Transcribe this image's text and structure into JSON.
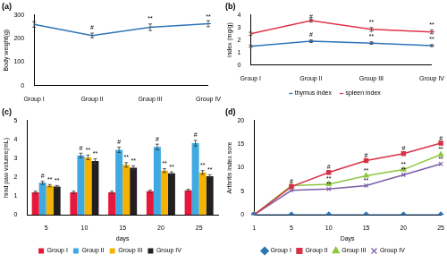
{
  "chart_data": [
    {
      "type": "line",
      "title": "(a)",
      "ylabel": "Body weight(g)",
      "categories": [
        "Group I",
        "Group II",
        "Group III",
        "Group IV"
      ],
      "values": [
        260,
        213,
        248,
        263
      ],
      "errors": [
        12,
        10,
        14,
        13
      ],
      "color": "#2e75b6",
      "marker": "dash",
      "ylim": [
        0,
        300
      ],
      "yticks": [
        0,
        100,
        200,
        300
      ],
      "grid": false,
      "annotations": [
        {
          "text": "#",
          "category": "Group II"
        },
        {
          "text": "**",
          "category": "Group III"
        },
        {
          "text": "**",
          "category": "Group IV"
        }
      ]
    },
    {
      "type": "line",
      "title": "(b)",
      "ylabel": "index (mg/g)",
      "categories": [
        "Group I",
        "Group II",
        "Group III",
        "Group IV"
      ],
      "series": [
        {
          "name": "thymus index",
          "color": "#2e75b6",
          "marker": "dash",
          "values": [
            1.5,
            1.9,
            1.75,
            1.55
          ],
          "errors": [
            0.08,
            0.1,
            0.1,
            0.08
          ]
        },
        {
          "name": "spleen index",
          "color": "#e0344a",
          "marker": "dash",
          "values": [
            2.5,
            3.55,
            2.85,
            2.65
          ],
          "errors": [
            0.12,
            0.12,
            0.15,
            0.15
          ]
        }
      ],
      "ylim": [
        0,
        4
      ],
      "yticks": [
        0,
        1,
        2,
        3,
        4
      ],
      "grid": false,
      "legend": "bottom",
      "annotations": [
        {
          "text": "#",
          "category": "Group II",
          "series": "thymus index"
        },
        {
          "text": "**",
          "category": "Group III",
          "series": "thymus index"
        },
        {
          "text": "**",
          "category": "Group IV",
          "series": "thymus index"
        },
        {
          "text": "#",
          "category": "Group II",
          "series": "spleen index"
        },
        {
          "text": "**",
          "category": "Group III",
          "series": "spleen index"
        },
        {
          "text": "**",
          "category": "Group IV",
          "series": "spleen index"
        }
      ]
    },
    {
      "type": "bar",
      "title": "(c)",
      "xlabel": "days",
      "ylabel": "hind paw volume(mL)",
      "categories": [
        "5",
        "10",
        "15",
        "20",
        "25"
      ],
      "series": [
        {
          "name": "Group I",
          "color": "#e8173c",
          "values": [
            1.2,
            1.2,
            1.2,
            1.25,
            1.3
          ],
          "errors": [
            0.06,
            0.06,
            0.06,
            0.06,
            0.06
          ]
        },
        {
          "name": "Group II",
          "color": "#3fa9e1",
          "values": [
            1.7,
            3.15,
            3.45,
            3.6,
            3.8
          ],
          "errors": [
            0.08,
            0.12,
            0.14,
            0.15,
            0.15
          ]
        },
        {
          "name": "Group III",
          "color": "#f5b301",
          "values": [
            1.55,
            3.05,
            2.65,
            2.35,
            2.25
          ],
          "errors": [
            0.06,
            0.12,
            0.12,
            0.1,
            0.1
          ]
        },
        {
          "name": "Group IV",
          "color": "#231f20",
          "values": [
            1.5,
            2.85,
            2.5,
            2.2,
            2.05
          ],
          "errors": [
            0.06,
            0.12,
            0.1,
            0.08,
            0.08
          ]
        }
      ],
      "ylim": [
        0,
        5
      ],
      "yticks": [
        0,
        1,
        2,
        3,
        4,
        5
      ],
      "grid": false,
      "legend": "bottom",
      "annotations": [
        {
          "text": "#",
          "category": "5",
          "series": "Group II"
        },
        {
          "text": "**",
          "category": "5",
          "series": "Group III"
        },
        {
          "text": "**",
          "category": "5",
          "series": "Group IV"
        },
        {
          "text": "#",
          "category": "10",
          "series": "Group II"
        },
        {
          "text": "**",
          "category": "10",
          "series": "Group III"
        },
        {
          "text": "**",
          "category": "10",
          "series": "Group IV"
        },
        {
          "text": "#",
          "category": "15",
          "series": "Group II"
        },
        {
          "text": "**",
          "category": "15",
          "series": "Group III"
        },
        {
          "text": "**",
          "category": "15",
          "series": "Group IV"
        },
        {
          "text": "#",
          "category": "20",
          "series": "Group II"
        },
        {
          "text": "**",
          "category": "20",
          "series": "Group III"
        },
        {
          "text": "**",
          "category": "20",
          "series": "Group IV"
        },
        {
          "text": "#",
          "category": "25",
          "series": "Group II"
        },
        {
          "text": "**",
          "category": "25",
          "series": "Group III"
        },
        {
          "text": "**",
          "category": "25",
          "series": "Group IV"
        }
      ]
    },
    {
      "type": "line",
      "title": "(d)",
      "xlabel": "Days",
      "ylabel": "Arthritis index sore",
      "categories": [
        "1",
        "5",
        "10",
        "15",
        "20",
        "25"
      ],
      "series": [
        {
          "name": "Group I",
          "color": "#2e75b6",
          "marker": "diamond",
          "values": [
            0,
            0,
            0,
            0,
            0,
            0
          ]
        },
        {
          "name": "Group II",
          "color": "#d63246",
          "marker": "square",
          "values": [
            0,
            6,
            9,
            11.5,
            13,
            15.2
          ]
        },
        {
          "name": "Group III",
          "color": "#8dc63f",
          "marker": "triangle",
          "values": [
            0,
            6.2,
            6.5,
            8.3,
            9.6,
            12.8
          ]
        },
        {
          "name": "Group IV",
          "color": "#7b5ea7",
          "marker": "x",
          "values": [
            0,
            5.2,
            5.5,
            6.2,
            8.5,
            10.8
          ]
        }
      ],
      "ylim": [
        0,
        20
      ],
      "yticks": [
        0,
        5,
        10,
        15,
        20
      ],
      "grid": false,
      "legend": "bottom",
      "annotations": [
        {
          "text": "#",
          "category": "5",
          "series": "Group II"
        },
        {
          "text": "#",
          "category": "10",
          "series": "Group II"
        },
        {
          "text": "#",
          "category": "15",
          "series": "Group II"
        },
        {
          "text": "#",
          "category": "20",
          "series": "Group II"
        },
        {
          "text": "#",
          "category": "25",
          "series": "Group II"
        },
        {
          "text": "**",
          "category": "10",
          "series": "Group III"
        },
        {
          "text": "**",
          "category": "15",
          "series": "Group III"
        },
        {
          "text": "**",
          "category": "20",
          "series": "Group III"
        },
        {
          "text": "**",
          "category": "25",
          "series": "Group III"
        },
        {
          "text": "**",
          "category": "10",
          "series": "Group IV"
        },
        {
          "text": "**",
          "category": "15",
          "series": "Group IV"
        },
        {
          "text": "**",
          "category": "20",
          "series": "Group IV"
        },
        {
          "text": "**",
          "category": "25",
          "series": "Group IV"
        }
      ]
    }
  ]
}
